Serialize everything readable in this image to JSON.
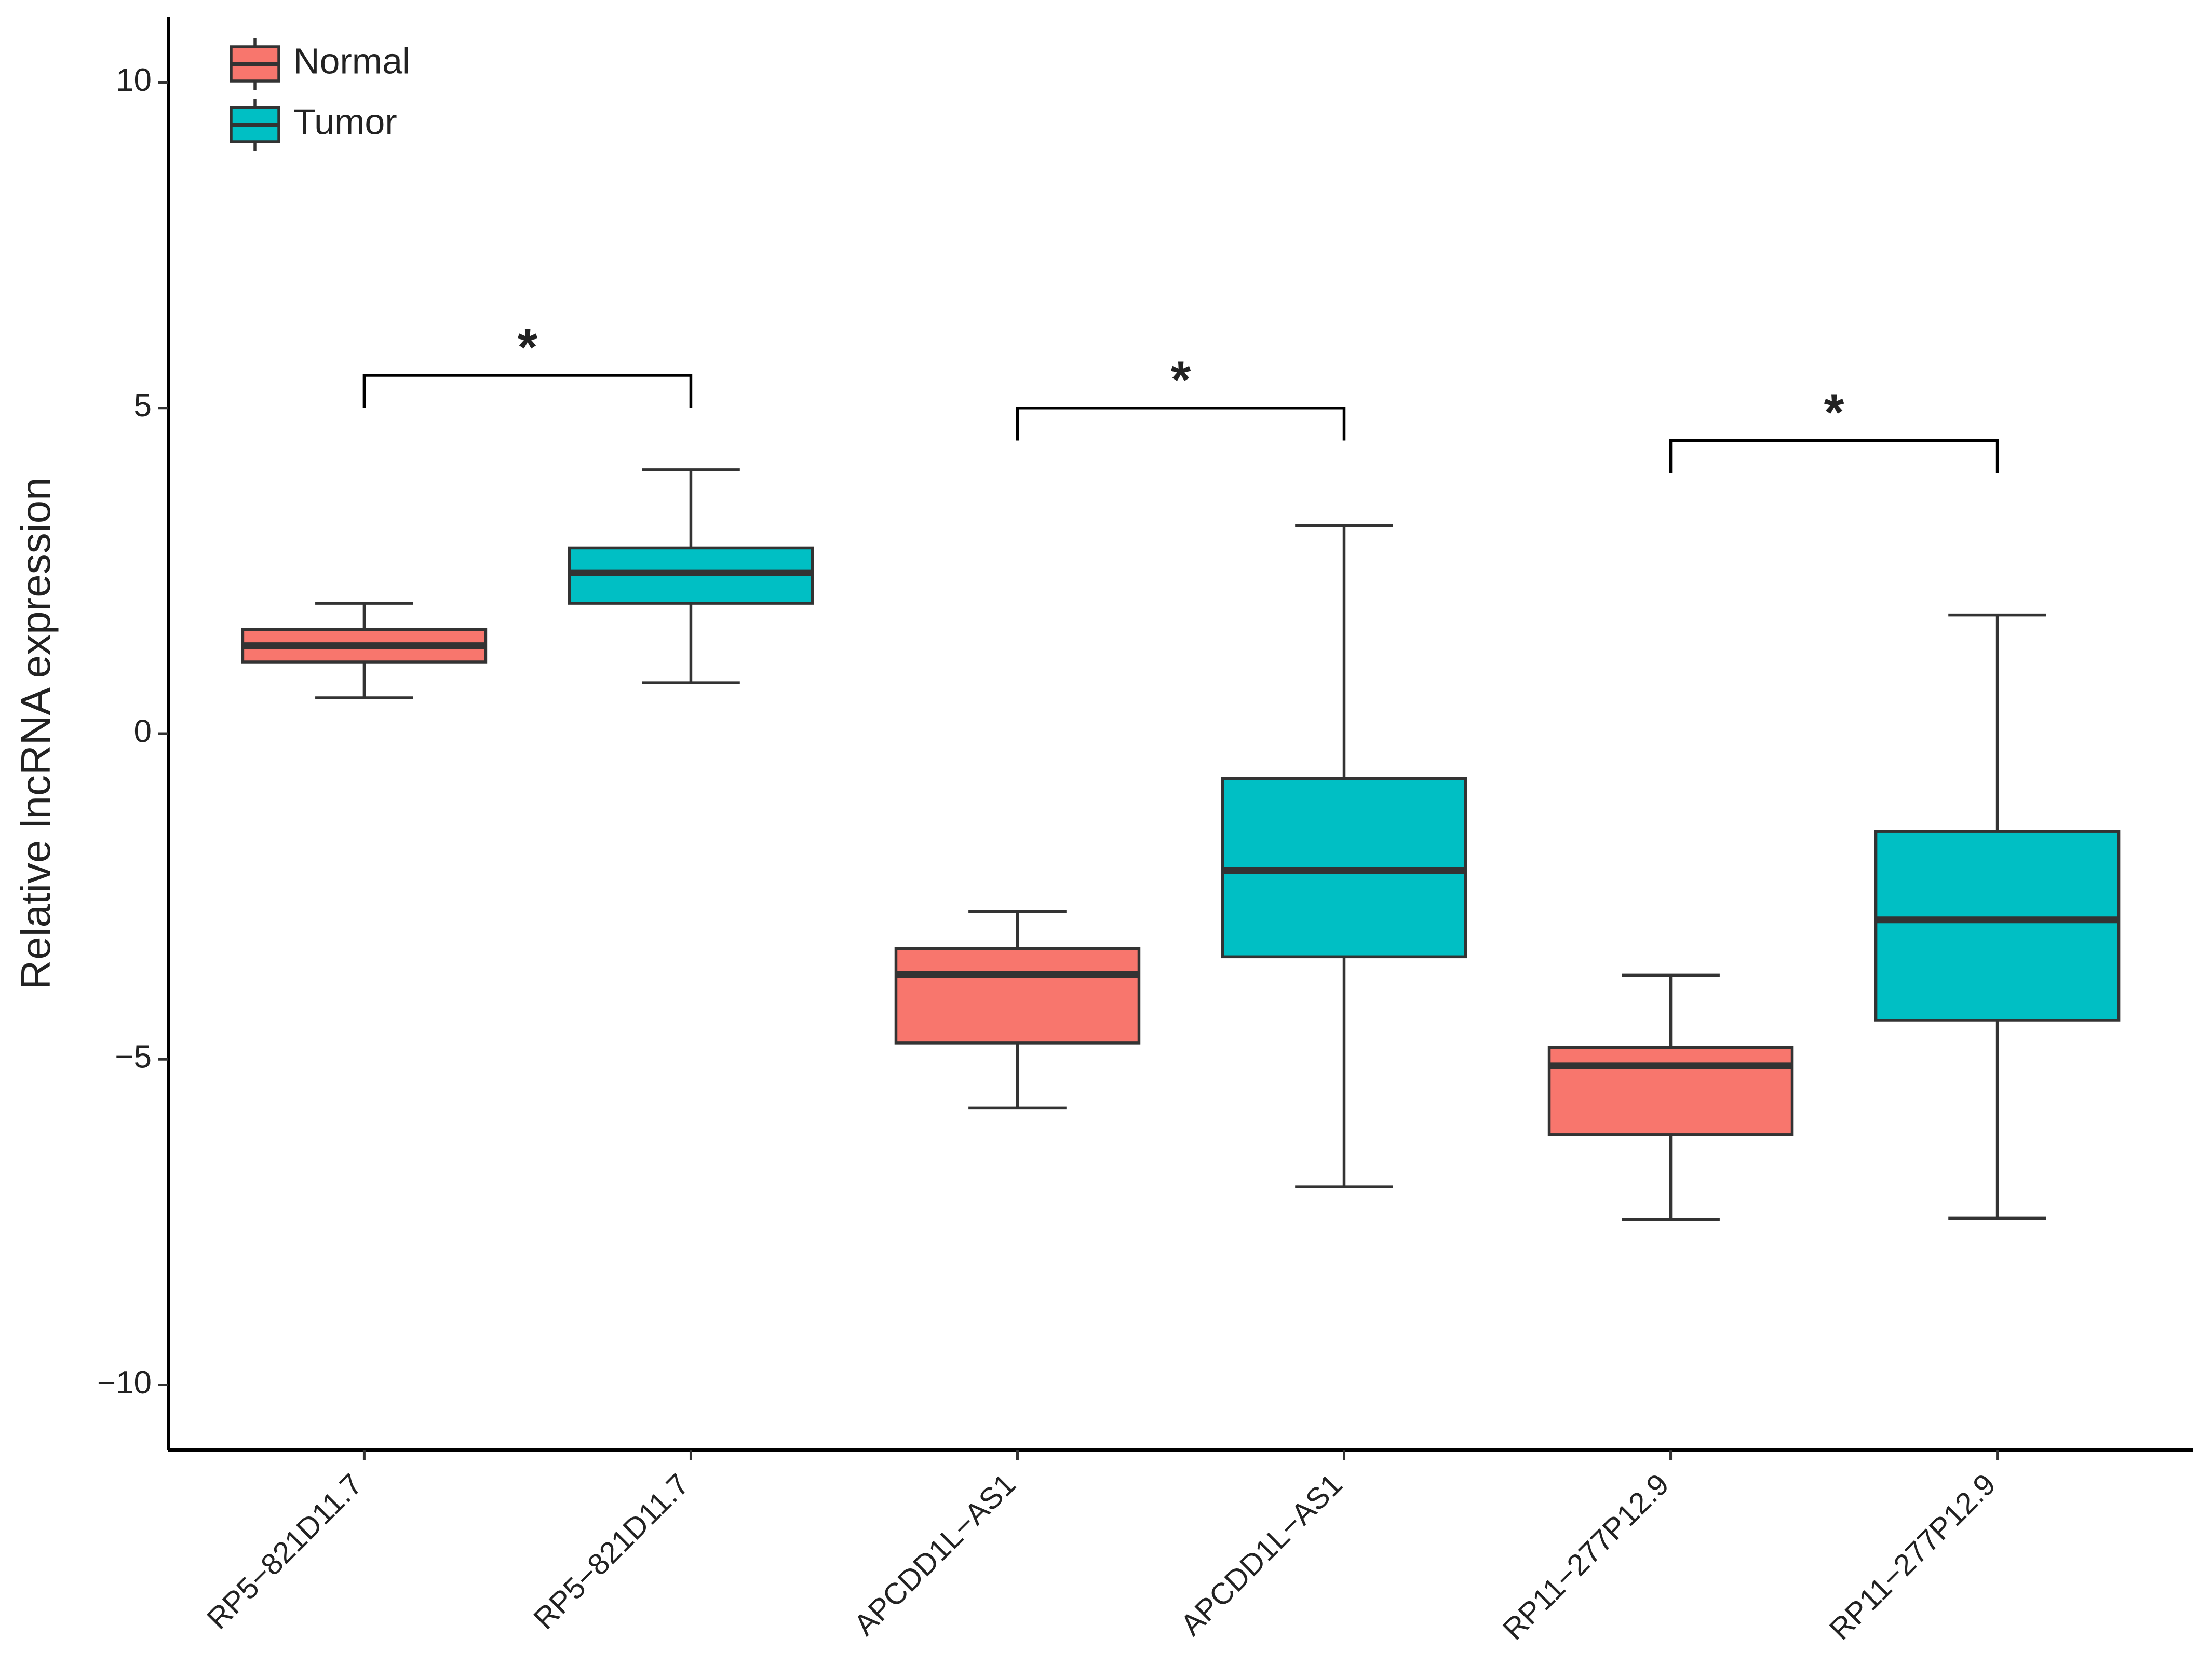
{
  "chart_data": {
    "type": "box",
    "y_label": "Relative lncRNA expression",
    "categories": [
      "RP5−821D11.7",
      "RP5−821D11.7",
      "APCDD1L−AS1",
      "APCDD1L−AS1",
      "RP11−277P12.9",
      "RP11−277P12.9"
    ],
    "series": [
      {
        "name": "Normal",
        "color": "#f8766d",
        "values": [
          {
            "min": 0.55,
            "q1": 1.1,
            "median": 1.35,
            "q3": 1.6,
            "max": 2.0
          },
          null,
          {
            "min": -5.75,
            "q1": -4.75,
            "median": -3.7,
            "q3": -3.3,
            "max": -2.73
          },
          null,
          {
            "min": -7.46,
            "q1": -6.16,
            "median": -5.1,
            "q3": -4.82,
            "max": -3.71
          },
          null
        ]
      },
      {
        "name": "Tumor",
        "color": "#00bfc4",
        "values": [
          null,
          {
            "min": 0.78,
            "q1": 2.0,
            "median": 2.47,
            "q3": 2.85,
            "max": 4.05
          },
          null,
          {
            "min": -6.96,
            "q1": -3.43,
            "median": -2.1,
            "q3": -0.69,
            "max": 3.19
          },
          null,
          {
            "min": -7.44,
            "q1": -4.4,
            "median": -2.86,
            "q3": -1.5,
            "max": 1.82
          }
        ]
      }
    ],
    "annotations": [
      {
        "text": "*",
        "y": 5.5
      },
      {
        "text": "*",
        "y": 5.0
      },
      {
        "text": "*",
        "y": 4.5
      }
    ],
    "ylim": [
      -11,
      11
    ],
    "yticks": [
      {
        "value": -10,
        "label": "−10"
      },
      {
        "value": -5,
        "label": "−5"
      },
      0,
      5,
      10
    ],
    "legend": "top-left"
  }
}
